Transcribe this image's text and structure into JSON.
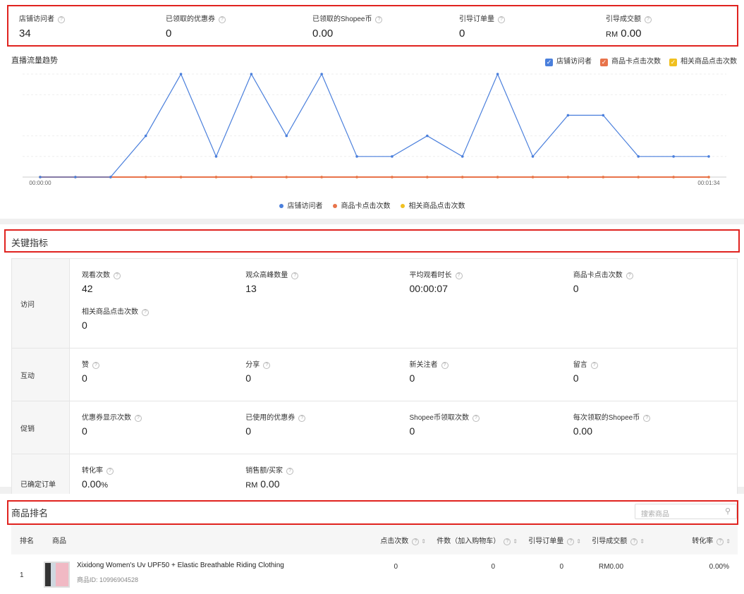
{
  "top_metrics": [
    {
      "label": "店铺访问者",
      "value": "34"
    },
    {
      "label": "已领取的优惠券",
      "value": "0"
    },
    {
      "label": "已领取的Shopee币",
      "value": "0.00"
    },
    {
      "label": "引导订单量",
      "value": "0"
    },
    {
      "label": "引导成交额",
      "prefix": "RM",
      "value": "0.00"
    }
  ],
  "chart_data": {
    "type": "line",
    "title": "直播流量趋势",
    "x_start_label": "00:00:00",
    "x_end_label": "00:01:34",
    "series": [
      {
        "name": "店铺访问者",
        "color": "#4a7fdc",
        "values": [
          0,
          0,
          0,
          2,
          5,
          1,
          5,
          2,
          5,
          1,
          1,
          2,
          1,
          5,
          1,
          3,
          3,
          1,
          1,
          1
        ]
      },
      {
        "name": "商品卡点击次数",
        "color": "#e8734a",
        "values": [
          0,
          0,
          0,
          0,
          0,
          0,
          0,
          0,
          0,
          0,
          0,
          0,
          0,
          0,
          0,
          0,
          0,
          0,
          0,
          0
        ]
      },
      {
        "name": "相关商品点击次数",
        "color": "#f0c020",
        "values": [
          0,
          0,
          0,
          0,
          0,
          0,
          0,
          0,
          0,
          0,
          0,
          0,
          0,
          0,
          0,
          0,
          0,
          0,
          0,
          0
        ]
      }
    ],
    "grid": true,
    "legend": "top-right and bottom"
  },
  "key_metrics": {
    "title": "关键指标",
    "rows": [
      {
        "label": "访问",
        "items": [
          {
            "label": "观看次数",
            "value": "42"
          },
          {
            "label": "观众高峰数量",
            "value": "13"
          },
          {
            "label": "平均观看时长",
            "value": "00:00:07"
          },
          {
            "label": "商品卡点击次数",
            "value": "0"
          },
          {
            "label": "相关商品点击次数",
            "value": "0"
          }
        ]
      },
      {
        "label": "互动",
        "items": [
          {
            "label": "赞",
            "value": "0"
          },
          {
            "label": "分享",
            "value": "0"
          },
          {
            "label": "新关注者",
            "value": "0"
          },
          {
            "label": "留言",
            "value": "0"
          }
        ]
      },
      {
        "label": "促销",
        "items": [
          {
            "label": "优惠券显示次数",
            "value": "0"
          },
          {
            "label": "已使用的优惠券",
            "value": "0"
          },
          {
            "label": "Shopee币领取次数",
            "value": "0"
          },
          {
            "label": "每次领取的Shopee币",
            "value": "0.00"
          }
        ]
      },
      {
        "label": "已确定订单",
        "items": [
          {
            "label": "转化率",
            "value": "0.00",
            "suffix": "%"
          },
          {
            "label": "销售额/买家",
            "prefix": "RM",
            "value": "0.00"
          }
        ]
      }
    ]
  },
  "ranking": {
    "title": "商品排名",
    "search_placeholder": "搜索商品",
    "columns": [
      "排名",
      "商品",
      "点击次数",
      "件数（加入购物车）",
      "引导订单量",
      "引导成交额",
      "转化率"
    ],
    "rows": [
      {
        "rank": "1",
        "name": "Xixidong Women's Uv UPF50 + Elastic Breathable Riding Clothing",
        "id": "商品ID: 10996904528",
        "clicks": "0",
        "qty": "0",
        "orders": "0",
        "sales": "RM0.00",
        "conv": "0.00%"
      }
    ]
  }
}
